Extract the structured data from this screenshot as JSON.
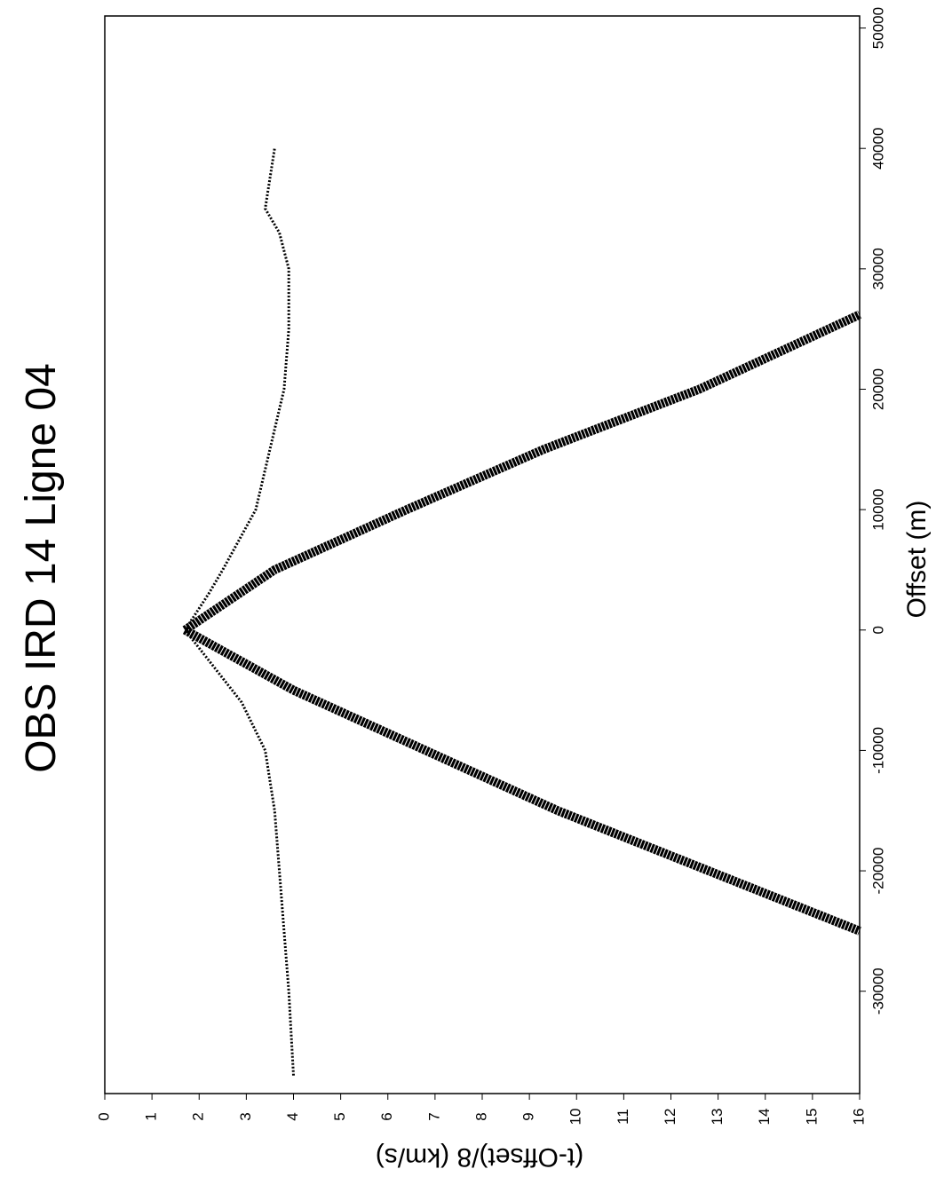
{
  "chart_data": {
    "type": "line",
    "title": "OBS IRD 14 Ligne 04",
    "x_label": "Offset (m)",
    "y_label": "(t-Offset)/8 (km/s)",
    "xlim": [
      -38500,
      51000
    ],
    "xticks": [
      -30000,
      -20000,
      -10000,
      0,
      10000,
      20000,
      30000,
      40000,
      50000
    ],
    "ylim": [
      0,
      16
    ],
    "yticks": [
      0,
      1,
      2,
      3,
      4,
      5,
      6,
      7,
      8,
      9,
      10,
      11,
      12,
      13,
      14,
      15,
      16
    ],
    "series": [
      {
        "color": "#000000",
        "x": [
          -37000,
          -30000,
          -20000,
          -15000,
          -10000,
          -6000,
          -3000,
          0,
          3000,
          5000,
          10000,
          15000,
          20000,
          25000,
          30000,
          33000,
          35000,
          40000
        ],
        "y": [
          4.0,
          3.9,
          3.7,
          3.6,
          3.4,
          2.9,
          2.3,
          1.7,
          2.2,
          2.5,
          3.2,
          3.5,
          3.8,
          3.9,
          3.9,
          3.7,
          3.4,
          3.6
        ]
      },
      {
        "color": "#000000",
        "x": [
          0,
          5000,
          10000,
          15000,
          20000,
          26200
        ],
        "y": [
          1.7,
          3.6,
          6.4,
          9.3,
          12.6,
          16
        ]
      },
      {
        "color": "#000000",
        "x": [
          0,
          -5000,
          -10000,
          -15000,
          -20000,
          -25000
        ],
        "y": [
          1.7,
          4.0,
          6.8,
          9.6,
          12.8,
          16
        ]
      }
    ]
  }
}
